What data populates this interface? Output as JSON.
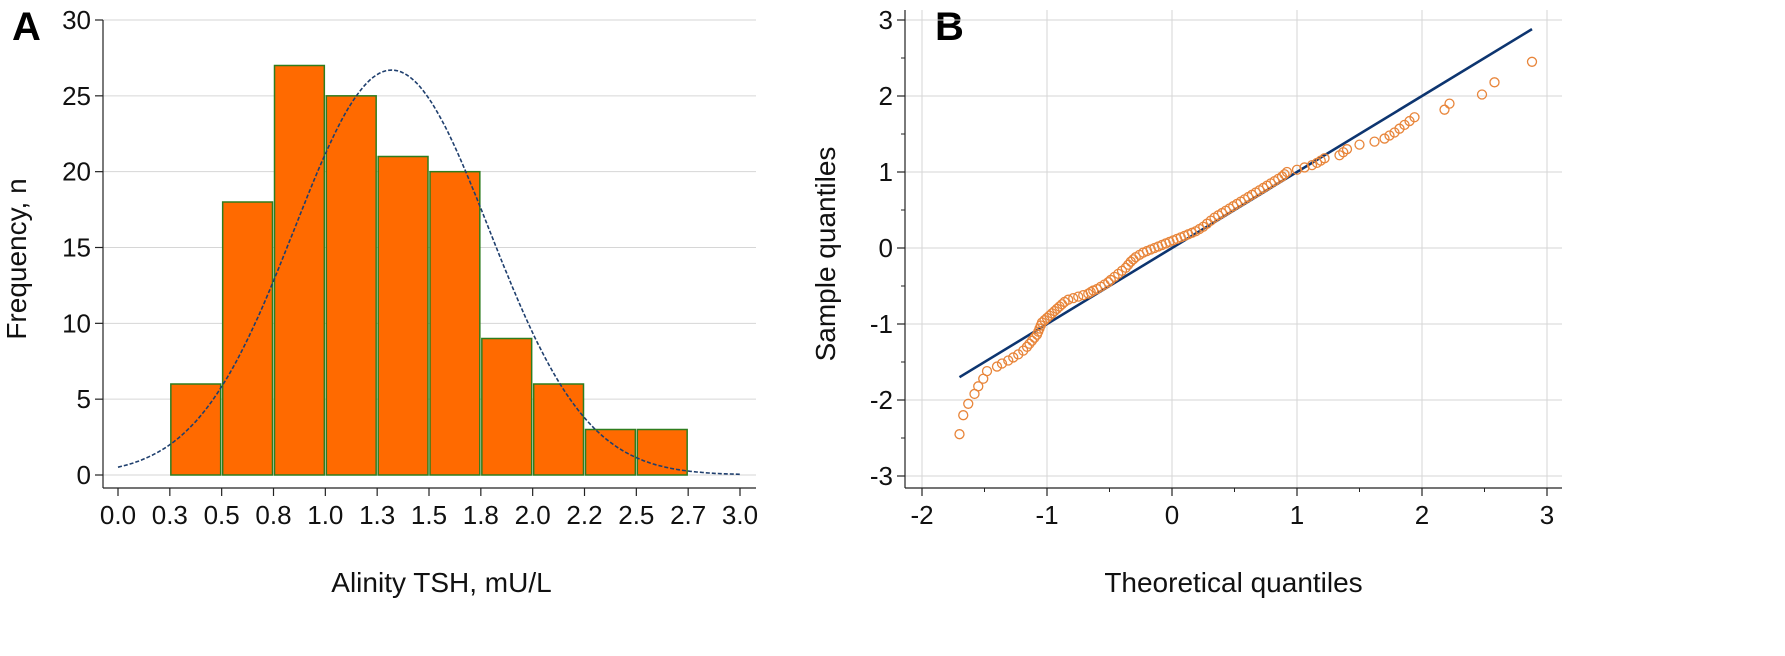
{
  "chart_data": [
    {
      "panel": "A",
      "type": "bar",
      "title": "",
      "xlabel": "Alinity TSH,  mU/L",
      "ylabel": "Frequency, n",
      "xlim": [
        0.0,
        3.0
      ],
      "ylim": [
        0,
        30
      ],
      "x_ticks": [
        "0.0",
        "0.3",
        "0.5",
        "0.8",
        "1.0",
        "1.3",
        "1.5",
        "1.8",
        "2.0",
        "2.2",
        "2.5",
        "2.7",
        "3.0"
      ],
      "y_ticks": [
        "0",
        "5",
        "10",
        "15",
        "20",
        "25",
        "30"
      ],
      "grid": true,
      "bins": [
        {
          "start": 0.25,
          "end": 0.5,
          "value": 6
        },
        {
          "start": 0.5,
          "end": 0.75,
          "value": 18
        },
        {
          "start": 0.75,
          "end": 1.0,
          "value": 27
        },
        {
          "start": 1.0,
          "end": 1.25,
          "value": 25
        },
        {
          "start": 1.25,
          "end": 1.5,
          "value": 21
        },
        {
          "start": 1.5,
          "end": 1.75,
          "value": 20
        },
        {
          "start": 1.75,
          "end": 2.0,
          "value": 9
        },
        {
          "start": 2.0,
          "end": 2.25,
          "value": 6
        },
        {
          "start": 2.25,
          "end": 2.5,
          "value": 3
        },
        {
          "start": 2.5,
          "end": 2.75,
          "value": 3
        }
      ],
      "normal_curve": {
        "mean": 1.32,
        "sd": 0.47,
        "peak": 26.7
      },
      "colors": {
        "bar_fill": "#ff6a00",
        "bar_stroke": "#2e7d1e",
        "curve": "#1f3f6e",
        "grid": "#d6d6d6"
      }
    },
    {
      "panel": "B",
      "type": "scatter",
      "title": "",
      "xlabel": "Theoretical quantiles",
      "ylabel": "Sample quantiles",
      "xlim": [
        -2.2,
        3.1
      ],
      "ylim": [
        -3.2,
        3.3
      ],
      "x_ticks": [
        "-2",
        "-1",
        "0",
        "1",
        "2",
        "3"
      ],
      "y_ticks": [
        "-3",
        "-2",
        "-1",
        "0",
        "1",
        "2",
        "3"
      ],
      "grid": true,
      "reference_line": {
        "x": [
          -1.7,
          2.88
        ],
        "y": [
          -1.7,
          2.88
        ]
      },
      "points": {
        "x": [
          -1.7,
          -1.67,
          -1.63,
          -1.58,
          -1.55,
          -1.51,
          -1.48,
          -1.4,
          -1.36,
          -1.31,
          -1.27,
          -1.23,
          -1.19,
          -1.16,
          -1.14,
          -1.12,
          -1.1,
          -1.08,
          -1.07,
          -1.06,
          -1.05,
          -1.04,
          -1.02,
          -1.0,
          -0.98,
          -0.96,
          -0.94,
          -0.92,
          -0.9,
          -0.88,
          -0.86,
          -0.83,
          -0.79,
          -0.75,
          -0.71,
          -0.67,
          -0.65,
          -0.63,
          -0.6,
          -0.57,
          -0.54,
          -0.51,
          -0.49,
          -0.46,
          -0.43,
          -0.4,
          -0.37,
          -0.35,
          -0.33,
          -0.31,
          -0.29,
          -0.26,
          -0.23,
          -0.2,
          -0.17,
          -0.14,
          -0.11,
          -0.08,
          -0.05,
          -0.02,
          0.01,
          0.04,
          0.07,
          0.1,
          0.13,
          0.16,
          0.19,
          0.22,
          0.25,
          0.28,
          0.31,
          0.34,
          0.37,
          0.4,
          0.43,
          0.46,
          0.49,
          0.52,
          0.55,
          0.58,
          0.61,
          0.64,
          0.67,
          0.7,
          0.73,
          0.76,
          0.79,
          0.82,
          0.85,
          0.88,
          0.9,
          0.92,
          1.0,
          1.06,
          1.12,
          1.16,
          1.19,
          1.22,
          1.34,
          1.37,
          1.4,
          1.5,
          1.62,
          1.7,
          1.74,
          1.78,
          1.82,
          1.86,
          1.9,
          1.94,
          2.18,
          2.22,
          2.48,
          2.58,
          2.88
        ],
        "y": [
          -2.45,
          -2.2,
          -2.05,
          -1.92,
          -1.82,
          -1.72,
          -1.62,
          -1.56,
          -1.52,
          -1.48,
          -1.44,
          -1.4,
          -1.35,
          -1.3,
          -1.26,
          -1.22,
          -1.18,
          -1.14,
          -1.1,
          -1.06,
          -1.02,
          -0.98,
          -0.95,
          -0.92,
          -0.89,
          -0.86,
          -0.83,
          -0.8,
          -0.77,
          -0.74,
          -0.71,
          -0.68,
          -0.66,
          -0.64,
          -0.62,
          -0.6,
          -0.58,
          -0.56,
          -0.54,
          -0.51,
          -0.48,
          -0.45,
          -0.42,
          -0.38,
          -0.34,
          -0.3,
          -0.26,
          -0.22,
          -0.18,
          -0.15,
          -0.12,
          -0.09,
          -0.06,
          -0.04,
          -0.02,
          0.0,
          0.02,
          0.04,
          0.06,
          0.08,
          0.1,
          0.12,
          0.14,
          0.16,
          0.18,
          0.2,
          0.22,
          0.25,
          0.28,
          0.32,
          0.36,
          0.4,
          0.43,
          0.46,
          0.49,
          0.52,
          0.55,
          0.58,
          0.61,
          0.64,
          0.67,
          0.7,
          0.73,
          0.76,
          0.79,
          0.82,
          0.85,
          0.88,
          0.91,
          0.94,
          0.97,
          1.0,
          1.03,
          1.06,
          1.09,
          1.12,
          1.15,
          1.18,
          1.22,
          1.26,
          1.3,
          1.36,
          1.4,
          1.44,
          1.48,
          1.52,
          1.57,
          1.62,
          1.67,
          1.72,
          1.82,
          1.9,
          2.02,
          2.18,
          2.45
        ]
      },
      "colors": {
        "point_stroke": "#e8853a",
        "line": "#0d3570",
        "grid": "#d6d6d6"
      }
    }
  ]
}
